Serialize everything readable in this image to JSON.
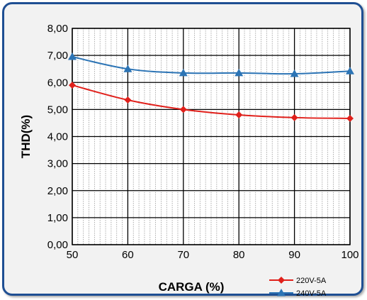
{
  "chart_data": {
    "type": "line",
    "title": "",
    "xlabel": "CARGA (%)",
    "ylabel": "THD(%)",
    "x": [
      50,
      60,
      70,
      80,
      90,
      100
    ],
    "x_tick_labels": [
      "50",
      "60",
      "70",
      "80",
      "90",
      "100"
    ],
    "xlim": [
      50,
      100
    ],
    "ylim": [
      0,
      8
    ],
    "y_ticks": [
      0,
      1,
      2,
      3,
      4,
      5,
      6,
      7,
      8
    ],
    "y_tick_labels": [
      "0,00",
      "1,00",
      "2,00",
      "3,00",
      "4,00",
      "5,00",
      "6,00",
      "7,00",
      "8,00"
    ],
    "grid": true,
    "legend_position": "bottom-right",
    "series": [
      {
        "name": "220V-5A",
        "color": "#e0201b",
        "marker": "diamond",
        "values": [
          5.9,
          5.35,
          5.0,
          4.8,
          4.7,
          4.67
        ]
      },
      {
        "name": "240V-5A",
        "color": "#2c74b5",
        "marker": "triangle",
        "values": [
          6.95,
          6.5,
          6.35,
          6.35,
          6.32,
          6.42
        ]
      }
    ]
  }
}
